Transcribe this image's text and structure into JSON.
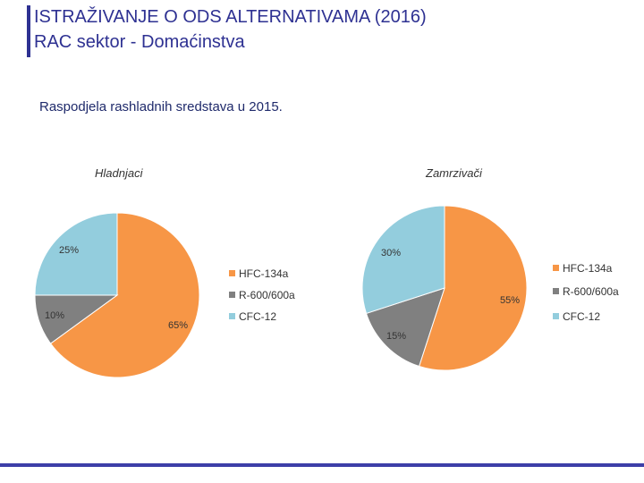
{
  "header": {
    "title_line1": "ISTRAŽIVANJE O ODS ALTERNATIVAMA (2016)",
    "title_line2": "RAC sektor - Domaćinstva",
    "subtitle": "Raspodjela rashladnih sredstava u 2015."
  },
  "colors": {
    "accent": "#2E3192",
    "hfc": "#F79646",
    "r600": "#808080",
    "cfc": "#93CDDD"
  },
  "chart_data": [
    {
      "type": "pie",
      "title": "Hladnjaci",
      "categories": [
        "HFC-134a",
        "R-600/600a",
        "CFC-12"
      ],
      "values": [
        65,
        10,
        25
      ],
      "labels": [
        "65%",
        "10%",
        "25%"
      ],
      "legend": "right"
    },
    {
      "type": "pie",
      "title": "Zamrzivači",
      "categories": [
        "HFC-134a",
        "R-600/600a",
        "CFC-12"
      ],
      "values": [
        55,
        15,
        30
      ],
      "labels": [
        "55%",
        "15%",
        "30%"
      ],
      "legend": "right"
    }
  ]
}
